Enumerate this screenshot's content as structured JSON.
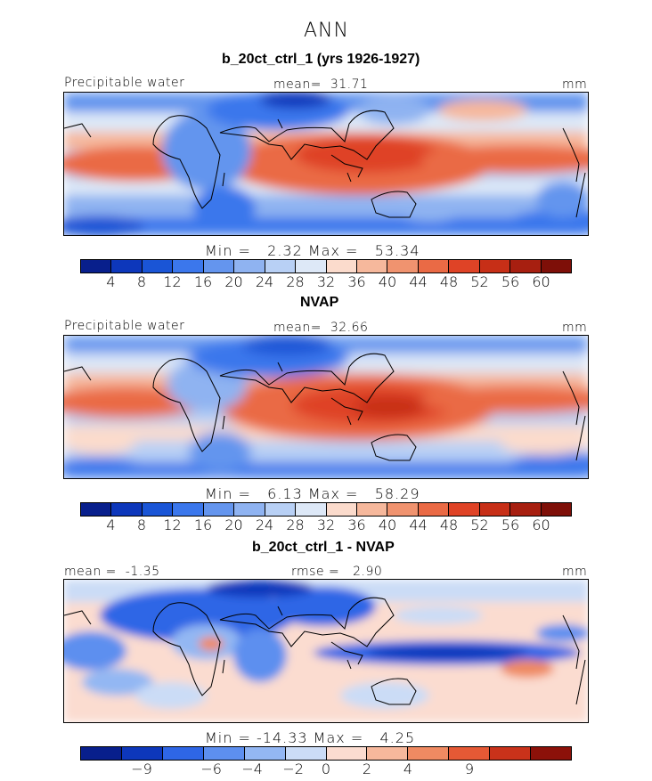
{
  "figure": {
    "title": "ANN"
  },
  "chart_data": [
    {
      "type": "heatmap",
      "title": "b_20ct_ctrl_1 (yrs 1926-1927)",
      "variable": "Precipitable water",
      "units": "mm",
      "mean_label": "mean=",
      "mean": "31.71",
      "min_label": "Min =",
      "min": "2.32",
      "max_label": "Max =",
      "max": "53.34",
      "colorbar_ticks": [
        "4",
        "8",
        "12",
        "16",
        "20",
        "24",
        "28",
        "32",
        "36",
        "40",
        "44",
        "48",
        "52",
        "56",
        "60"
      ]
    },
    {
      "type": "heatmap",
      "title": "NVAP",
      "variable": "Precipitable water",
      "units": "mm",
      "mean_label": "mean=",
      "mean": "32.66",
      "min_label": "Min =",
      "min": "6.13",
      "max_label": "Max =",
      "max": "58.29",
      "colorbar_ticks": [
        "4",
        "8",
        "12",
        "16",
        "20",
        "24",
        "28",
        "32",
        "36",
        "40",
        "44",
        "48",
        "52",
        "56",
        "60"
      ]
    },
    {
      "type": "heatmap",
      "title": "b_20ct_ctrl_1 - NVAP",
      "units": "mm",
      "mean_label": "mean =",
      "mean": "-1.35",
      "rmse_label": "rmse =",
      "rmse": "2.90",
      "min_label": "Min =",
      "min": "-14.33",
      "max_label": "Max =",
      "max": "4.25",
      "colorbar_ticks": [
        "−9",
        "−6",
        "−4",
        "−2",
        "0",
        "2",
        "4",
        "9"
      ]
    }
  ],
  "colors": {
    "scale16": [
      "#081f8c",
      "#0d37bb",
      "#1a55d6",
      "#3b77ec",
      "#6495ee",
      "#8fb3f1",
      "#b8d0f5",
      "#dde8f7",
      "#fbdbcc",
      "#f6b89c",
      "#f0936f",
      "#ea6a45",
      "#df4326",
      "#c72f17",
      "#a71f10",
      "#7e0f08"
    ],
    "scale12": [
      "#081f8c",
      "#0d37bb",
      "#2e66e6",
      "#5d8fef",
      "#93b7f3",
      "#cbdcf6",
      "#fbdcd0",
      "#f6b89c",
      "#ef8a62",
      "#e55935",
      "#c9321a",
      "#8c1109"
    ]
  }
}
